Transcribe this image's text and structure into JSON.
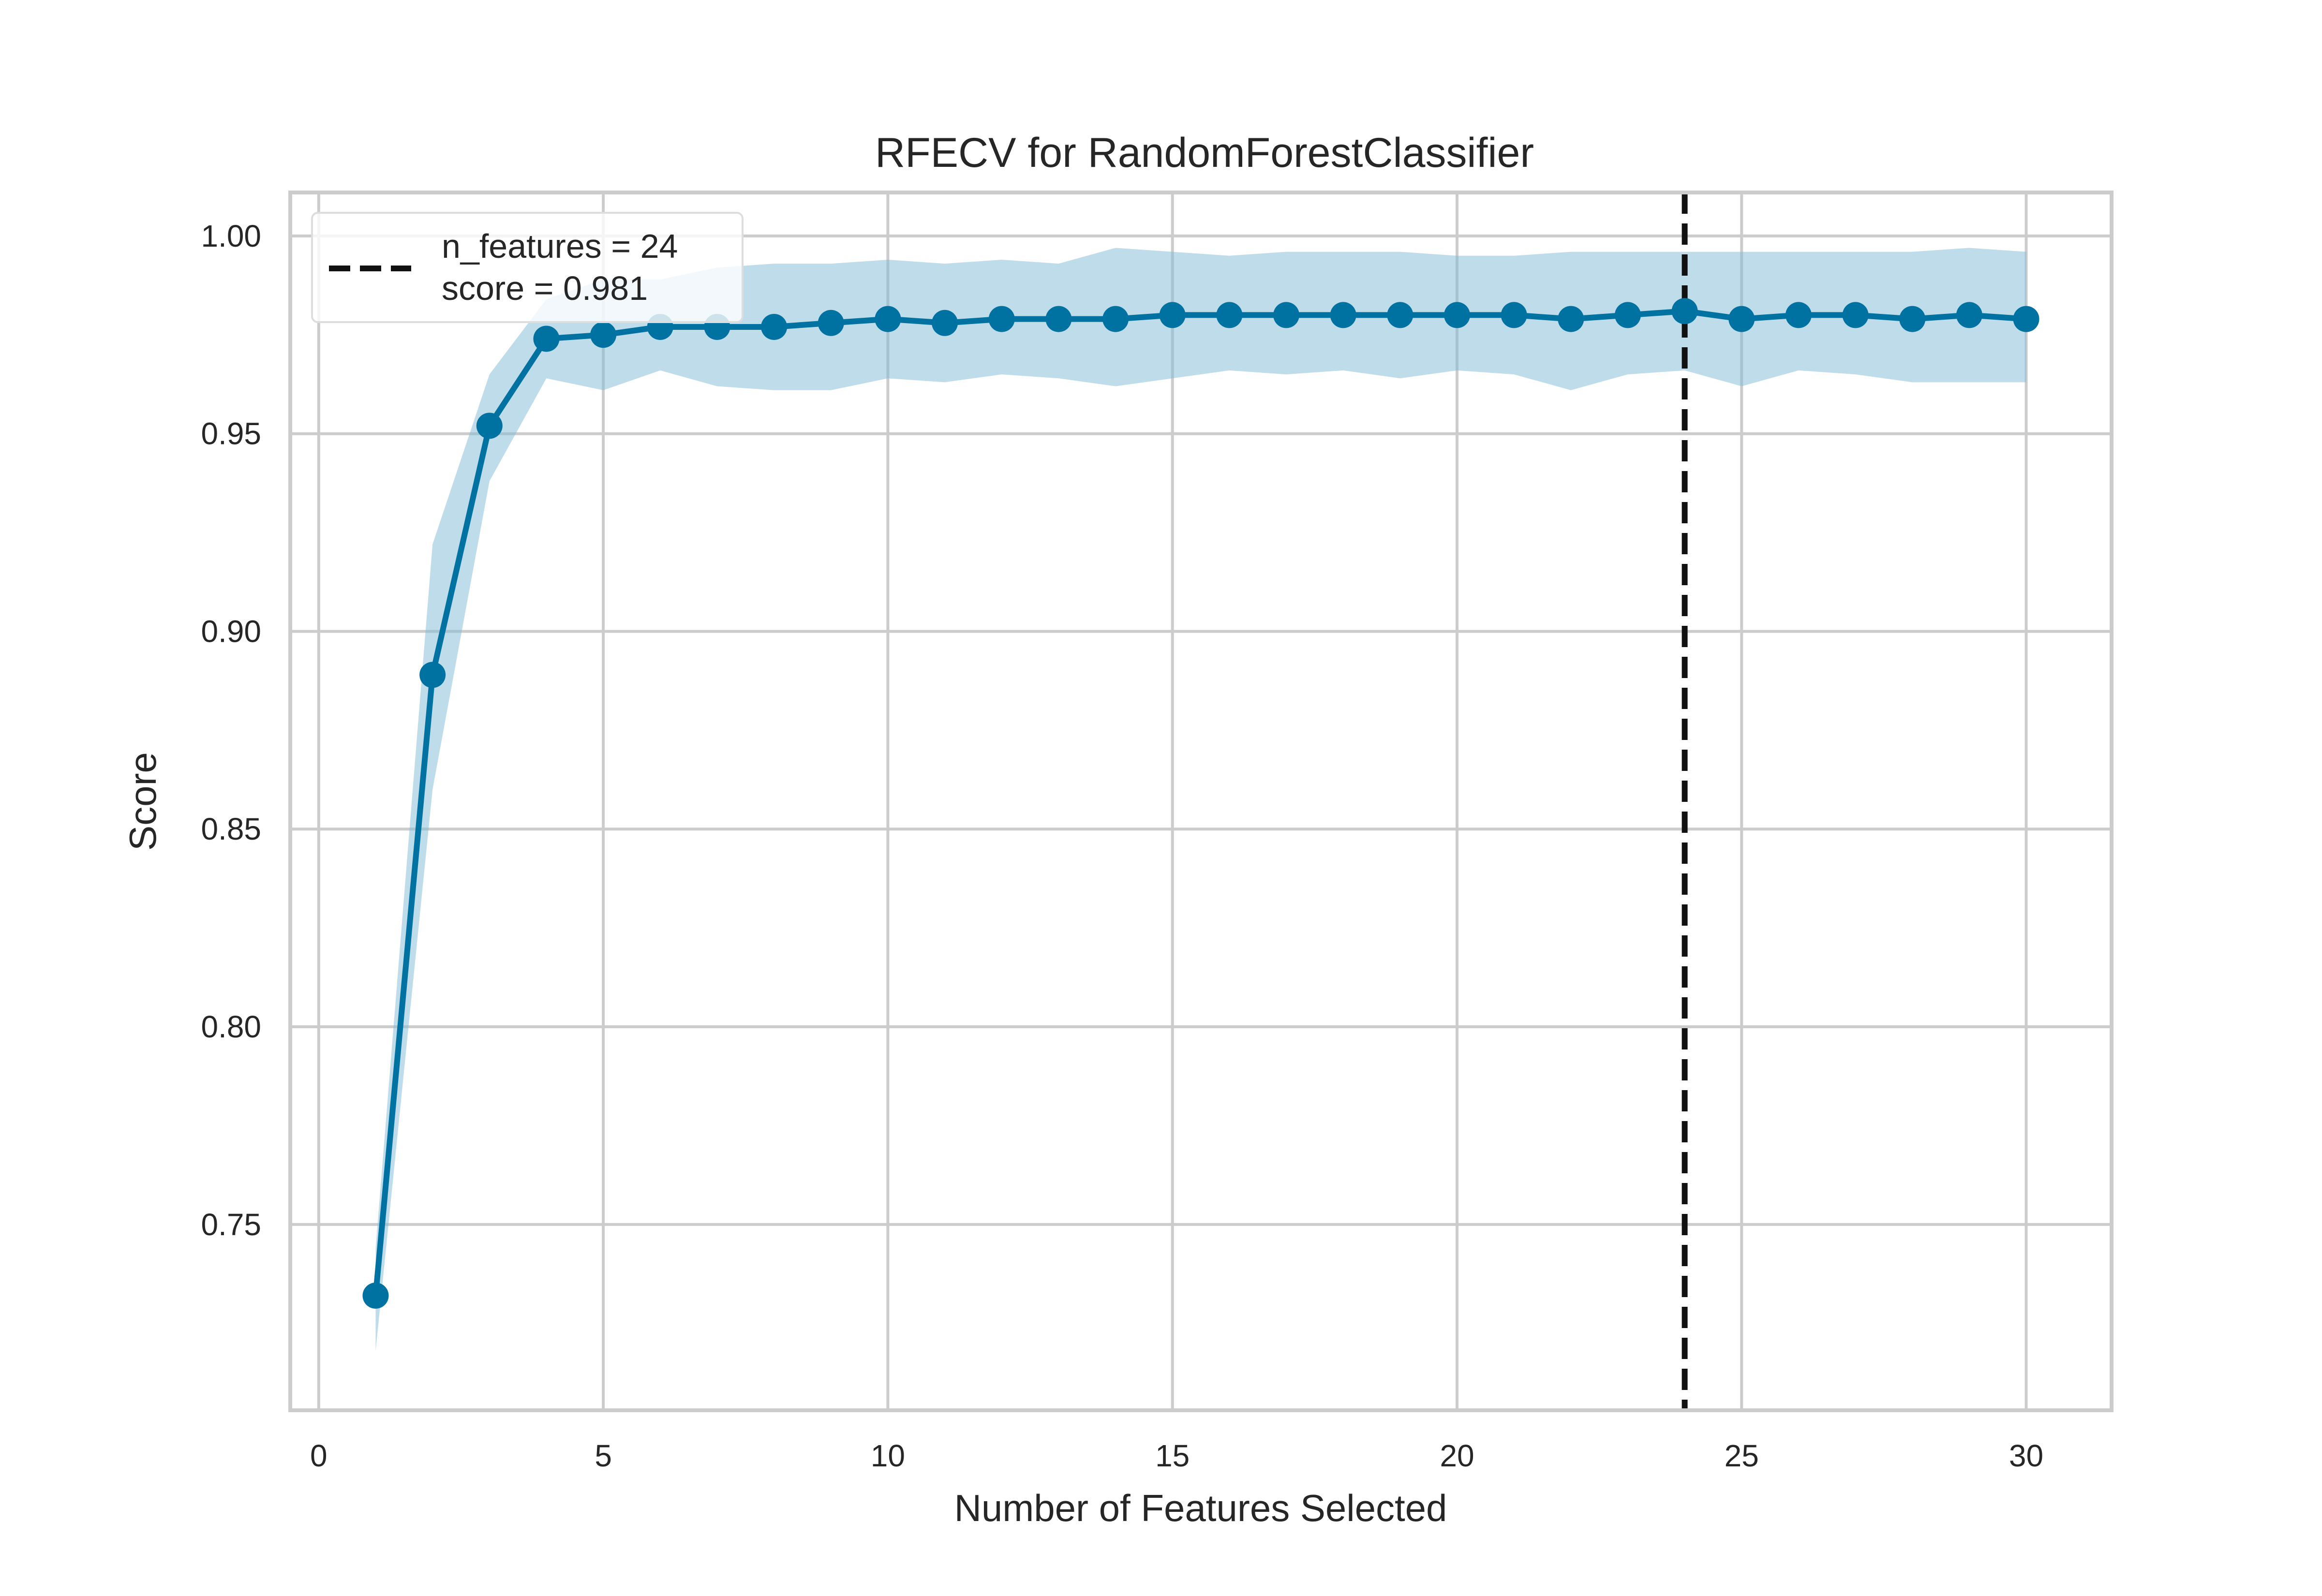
{
  "chart_data": {
    "type": "line",
    "title": "RFECV for RandomForestClassifier",
    "xlabel": "Number of Features Selected",
    "ylabel": "Score",
    "xlim": [
      -0.5,
      31.5
    ],
    "ylim": [
      0.703,
      1.011
    ],
    "xticks": [
      0,
      5,
      10,
      15,
      20,
      25,
      30
    ],
    "yticks": [
      0.75,
      0.8,
      0.85,
      0.9,
      0.95,
      1.0
    ],
    "xtick_labels": [
      "0",
      "5",
      "10",
      "15",
      "20",
      "25",
      "30"
    ],
    "ytick_labels": [
      "0.75",
      "0.80",
      "0.85",
      "0.90",
      "0.95",
      "1.00"
    ],
    "grid": true,
    "legend_position": "top-left",
    "series": [
      {
        "x": [
          1,
          2,
          3,
          4,
          5,
          6,
          7,
          8,
          9,
          10,
          11,
          12,
          13,
          14,
          15,
          16,
          17,
          18,
          19,
          20,
          21,
          22,
          23,
          24,
          25,
          26,
          27,
          28,
          29,
          30
        ],
        "y": [
          0.732,
          0.889,
          0.952,
          0.974,
          0.975,
          0.977,
          0.977,
          0.977,
          0.978,
          0.979,
          0.978,
          0.979,
          0.979,
          0.979,
          0.98,
          0.98,
          0.98,
          0.98,
          0.98,
          0.98,
          0.98,
          0.979,
          0.98,
          0.981,
          0.979,
          0.98,
          0.98,
          0.979,
          0.98,
          0.979
        ],
        "upper": [
          0.744,
          0.922,
          0.965,
          0.984,
          0.989,
          0.989,
          0.992,
          0.993,
          0.993,
          0.994,
          0.993,
          0.994,
          0.993,
          0.997,
          0.996,
          0.995,
          0.996,
          0.996,
          0.996,
          0.995,
          0.995,
          0.996,
          0.996,
          0.996,
          0.996,
          0.996,
          0.996,
          0.996,
          0.997,
          0.996
        ],
        "lower": [
          0.718,
          0.86,
          0.938,
          0.964,
          0.961,
          0.966,
          0.962,
          0.961,
          0.961,
          0.964,
          0.963,
          0.965,
          0.964,
          0.962,
          0.964,
          0.966,
          0.965,
          0.966,
          0.964,
          0.966,
          0.965,
          0.961,
          0.965,
          0.966,
          0.962,
          0.966,
          0.965,
          0.963,
          0.963,
          0.963
        ],
        "color": "#0072a2",
        "band_color": "#7fb9d5"
      }
    ],
    "vline": {
      "x": 24,
      "color": "#111111",
      "style": "dashed"
    },
    "legend": {
      "line1": "n_features = 24",
      "line2": "score = 0.981"
    }
  },
  "colors": {
    "grid": "#cccccc",
    "axis_text": "#262626"
  }
}
